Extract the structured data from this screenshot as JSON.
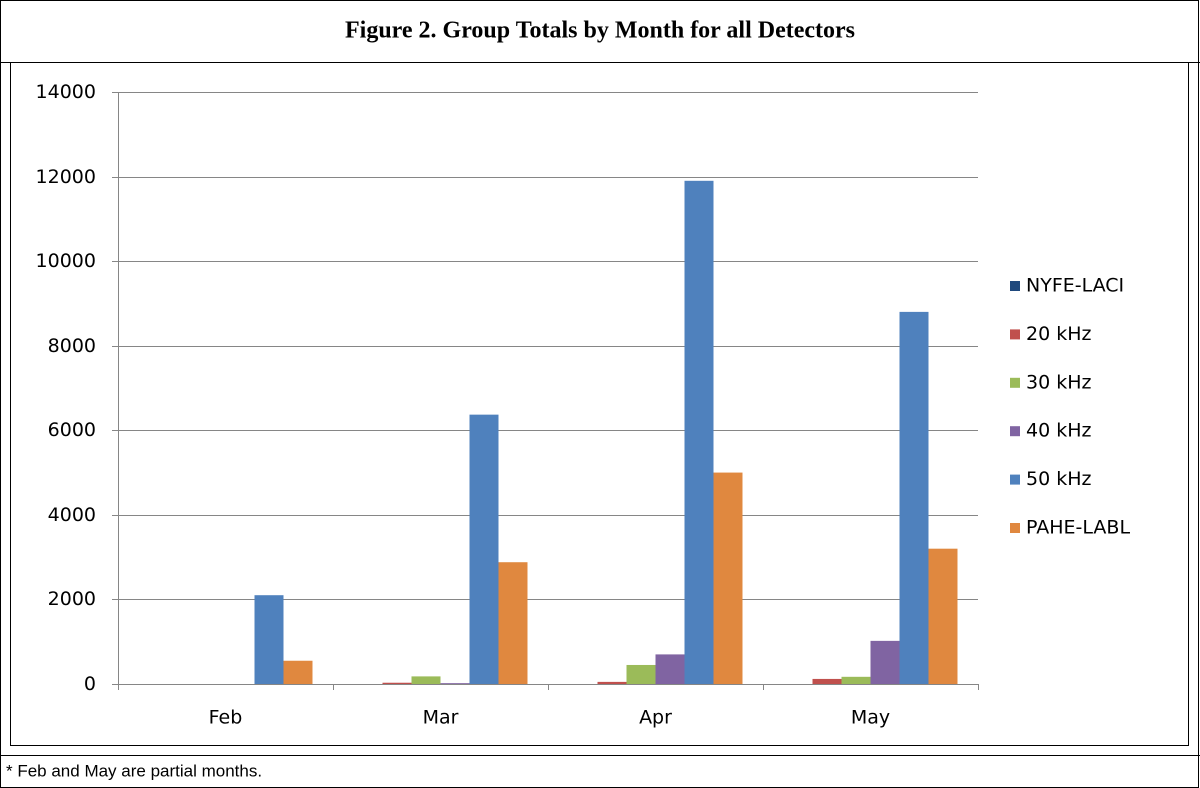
{
  "chart_data": {
    "type": "bar",
    "title": "Figure 2.  Group Totals by Month for all Detectors",
    "footnote": "* Feb and May are partial months.",
    "categories": [
      "Feb",
      "Mar",
      "Apr",
      "May"
    ],
    "series": [
      {
        "name": "NYFE-LACI",
        "color": "#1f497d",
        "values": [
          0,
          0,
          0,
          0
        ]
      },
      {
        "name": "20 kHz",
        "color": "#c0504d",
        "values": [
          0,
          30,
          50,
          120
        ]
      },
      {
        "name": "30 kHz",
        "color": "#9bbb59",
        "values": [
          0,
          180,
          450,
          170
        ]
      },
      {
        "name": "40 kHz",
        "color": "#8064a2",
        "values": [
          0,
          20,
          700,
          1020
        ]
      },
      {
        "name": "50 kHz",
        "color": "#4f81bd",
        "values": [
          2100,
          6370,
          11900,
          8800
        ]
      },
      {
        "name": "PAHE-LABL",
        "color": "#e0883f",
        "values": [
          550,
          2880,
          5000,
          3200
        ]
      }
    ],
    "ylim": [
      0,
      14000
    ],
    "yticks": [
      0,
      2000,
      4000,
      6000,
      8000,
      10000,
      12000,
      14000
    ],
    "grid": true,
    "legend": "right"
  }
}
